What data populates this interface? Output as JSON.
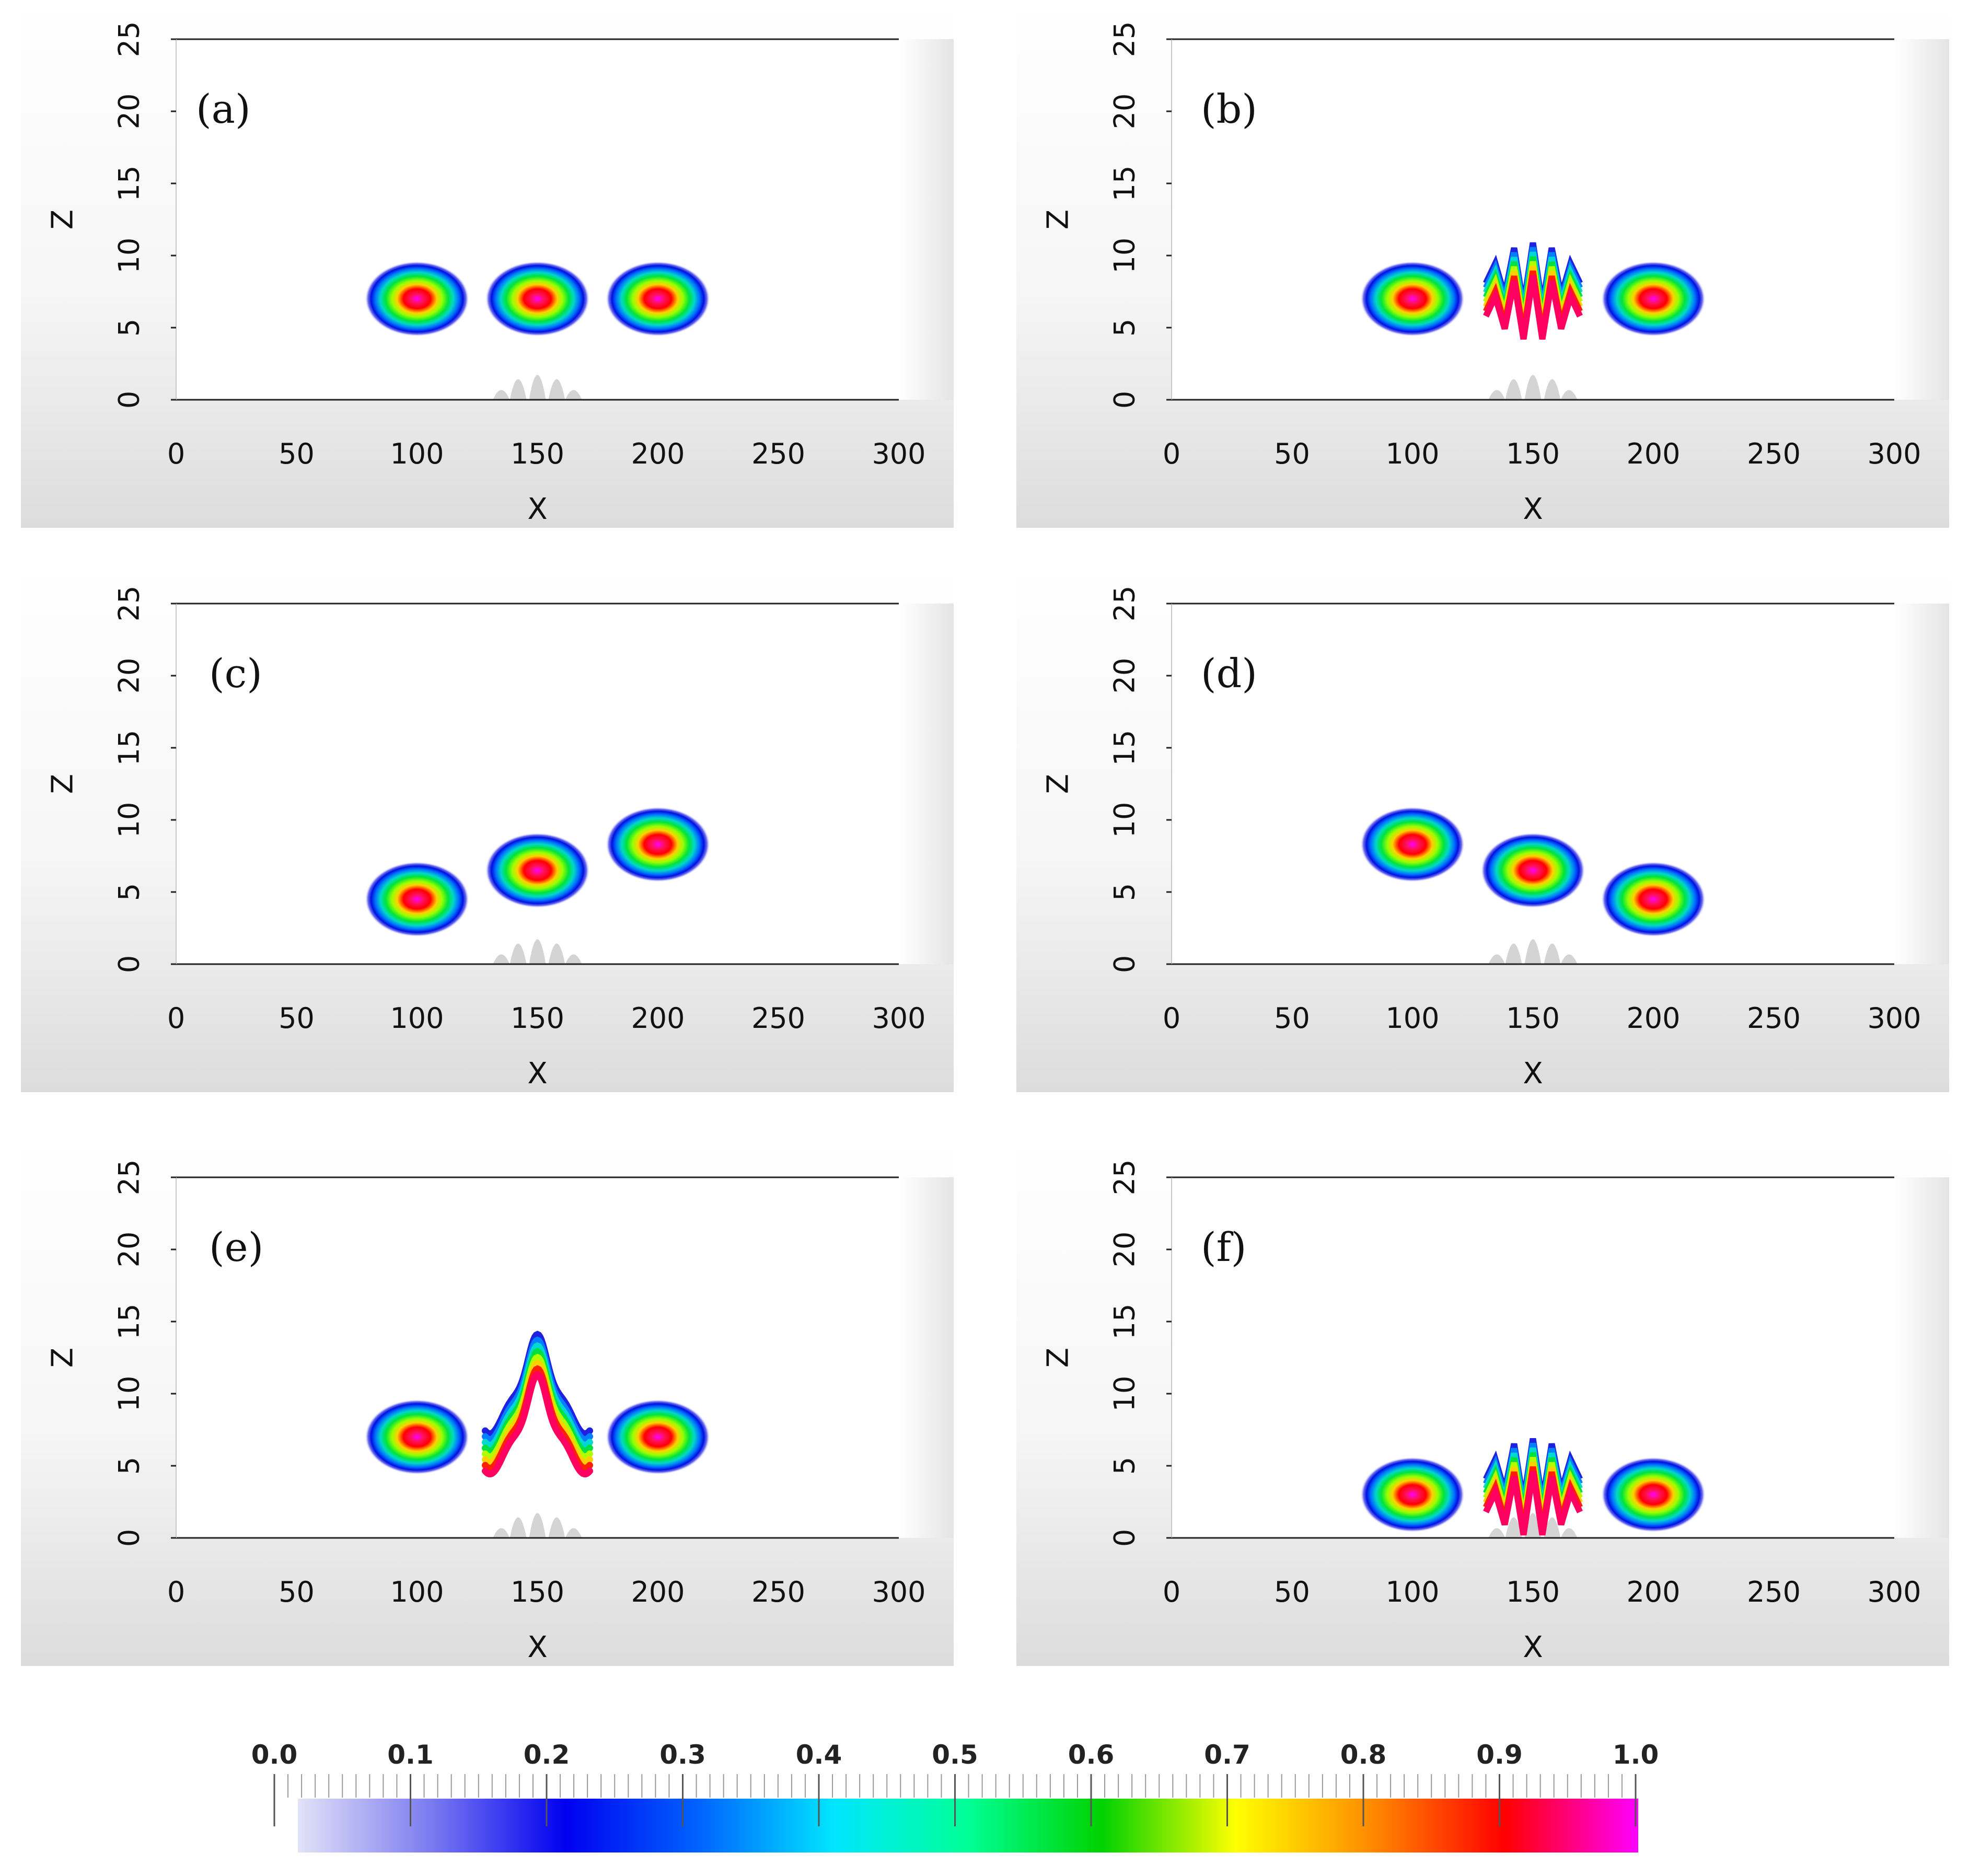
{
  "chart_data": [
    {
      "type": "heatmap",
      "panel_label": "(a)",
      "xlabel": "X",
      "ylabel": "Z",
      "xlim": [
        0,
        300
      ],
      "ylim": [
        0,
        25
      ],
      "xticks": [
        "0",
        "50",
        "100",
        "150",
        "200",
        "250",
        "300"
      ],
      "yticks": [
        "0",
        "5",
        "10",
        "15",
        "20",
        "25"
      ],
      "blobs": [
        {
          "x": 100,
          "z": 7,
          "shape": "round"
        },
        {
          "x": 150,
          "z": 7,
          "shape": "round"
        },
        {
          "x": 200,
          "z": 7,
          "shape": "round"
        }
      ]
    },
    {
      "type": "heatmap",
      "panel_label": "(b)",
      "xlabel": "X",
      "ylabel": "Z",
      "xlim": [
        0,
        300
      ],
      "ylim": [
        0,
        25
      ],
      "xticks": [
        "0",
        "50",
        "100",
        "150",
        "200",
        "250",
        "300"
      ],
      "yticks": [
        "0",
        "5",
        "10",
        "15",
        "20",
        "25"
      ],
      "blobs": [
        {
          "x": 100,
          "z": 7,
          "shape": "round"
        },
        {
          "x": 150,
          "z": 7.5,
          "shape": "zigzag"
        },
        {
          "x": 200,
          "z": 7,
          "shape": "round"
        }
      ]
    },
    {
      "type": "heatmap",
      "panel_label": "(c)",
      "xlabel": "X",
      "ylabel": "Z",
      "xlim": [
        0,
        300
      ],
      "ylim": [
        0,
        25
      ],
      "xticks": [
        "0",
        "50",
        "100",
        "150",
        "200",
        "250",
        "300"
      ],
      "yticks": [
        "0",
        "5",
        "10",
        "15",
        "20",
        "25"
      ],
      "blobs": [
        {
          "x": 100,
          "z": 4.5,
          "shape": "round"
        },
        {
          "x": 150,
          "z": 6.5,
          "shape": "round"
        },
        {
          "x": 200,
          "z": 8.3,
          "shape": "round"
        }
      ]
    },
    {
      "type": "heatmap",
      "panel_label": "(d)",
      "xlabel": "X",
      "ylabel": "Z",
      "xlim": [
        0,
        300
      ],
      "ylim": [
        0,
        25
      ],
      "xticks": [
        "0",
        "50",
        "100",
        "150",
        "200",
        "250",
        "300"
      ],
      "yticks": [
        "0",
        "5",
        "10",
        "15",
        "20",
        "25"
      ],
      "blobs": [
        {
          "x": 100,
          "z": 8.3,
          "shape": "round"
        },
        {
          "x": 150,
          "z": 6.5,
          "shape": "round"
        },
        {
          "x": 200,
          "z": 4.5,
          "shape": "round"
        }
      ]
    },
    {
      "type": "heatmap",
      "panel_label": "(e)",
      "xlabel": "X",
      "ylabel": "Z",
      "xlim": [
        0,
        300
      ],
      "ylim": [
        0,
        25
      ],
      "xticks": [
        "0",
        "50",
        "100",
        "150",
        "200",
        "250",
        "300"
      ],
      "yticks": [
        "0",
        "5",
        "10",
        "15",
        "20",
        "25"
      ],
      "blobs": [
        {
          "x": 100,
          "z": 7,
          "shape": "round"
        },
        {
          "x": 150,
          "z": 8,
          "shape": "peak"
        },
        {
          "x": 200,
          "z": 7,
          "shape": "round"
        }
      ]
    },
    {
      "type": "heatmap",
      "panel_label": "(f)",
      "xlabel": "X",
      "ylabel": "Z",
      "xlim": [
        0,
        300
      ],
      "ylim": [
        0,
        25
      ],
      "xticks": [
        "0",
        "50",
        "100",
        "150",
        "200",
        "250",
        "300"
      ],
      "yticks": [
        "0",
        "5",
        "10",
        "15",
        "20",
        "25"
      ],
      "blobs": [
        {
          "x": 100,
          "z": 3,
          "shape": "round"
        },
        {
          "x": 150,
          "z": 3.5,
          "shape": "zigzag"
        },
        {
          "x": 200,
          "z": 3,
          "shape": "round"
        }
      ]
    }
  ],
  "colorbar": {
    "min": 0.0,
    "max": 1.0,
    "labels": [
      "0.0",
      "0.1",
      "0.2",
      "0.3",
      "0.4",
      "0.5",
      "0.6",
      "0.7",
      "0.8",
      "0.9",
      "1.0"
    ],
    "colors": [
      "#e2e2f8",
      "#7a7af0",
      "#0000f0",
      "#0064ff",
      "#00e6ff",
      "#00ff96",
      "#00d200",
      "#ffff00",
      "#ff8c00",
      "#ff0000",
      "#ff00ff"
    ]
  },
  "terrain": {
    "color": "#d4d4d4",
    "bumps": [
      {
        "x": 135,
        "h": 0.7
      },
      {
        "x": 142,
        "h": 2.2
      },
      {
        "x": 150,
        "h": 2.8
      },
      {
        "x": 158,
        "h": 2.2
      },
      {
        "x": 165,
        "h": 0.7
      }
    ]
  }
}
